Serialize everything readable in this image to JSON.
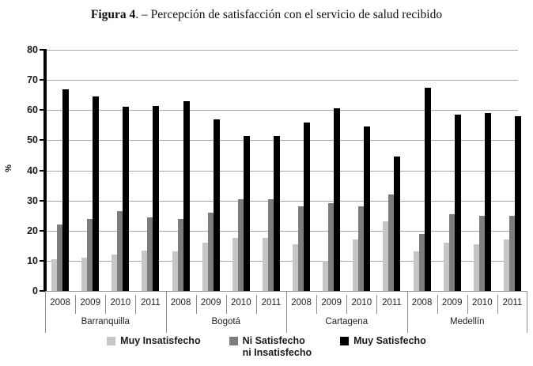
{
  "title": {
    "bold": "Figura 4",
    "rest": ". – Percepción de satisfacción  con el servicio de salud recibido"
  },
  "colors": {
    "muy_insatisfecho": "#c6c6c6",
    "ni_satisfecho": "#7d7d7d",
    "muy_satisfecho": "#000000",
    "gridline": "#a6a6a6",
    "axis": "#000000",
    "table_line": "#8c8c8c"
  },
  "chart_data": {
    "type": "bar",
    "title": "Percepción de satisfacción con el servicio de salud recibido",
    "xlabel": "",
    "ylabel": "%",
    "ylim": [
      0,
      80
    ],
    "y_ticks": [
      0,
      10,
      20,
      30,
      40,
      50,
      60,
      70,
      80
    ],
    "grid": true,
    "legend_position": "bottom",
    "group_categories": [
      "Barranquilla",
      "Bogotá",
      "Cartagena",
      "Medellín"
    ],
    "years_per_group": [
      "2008",
      "2009",
      "2010",
      "2011"
    ],
    "categories_order_note": "values run Barranquilla 2008-2011, Bogotá 2008-2011, Cartagena 2008-2011, Medellín 2008-2011",
    "series": [
      {
        "name": "Muy Insatisfecho",
        "legend_lines": [
          "Muy Insatisfecho"
        ],
        "color": "#c6c6c6",
        "values": [
          10.5,
          11,
          12,
          13.5,
          13,
          16,
          17.5,
          17.5,
          15.5,
          10,
          17,
          23,
          13,
          16,
          15.5,
          17
        ]
      },
      {
        "name": "Ni Satisfecho ni Insatisfecho",
        "legend_lines": [
          "Ni Satisfecho",
          "ni Insatisfecho"
        ],
        "color": "#7d7d7d",
        "values": [
          22,
          24,
          26.5,
          24.5,
          24,
          26,
          30.5,
          30.5,
          28,
          29,
          28,
          32,
          19,
          25.5,
          25,
          25
        ]
      },
      {
        "name": "Muy Satisfecho",
        "legend_lines": [
          "Muy Satisfecho"
        ],
        "color": "#000000",
        "values": [
          67,
          64.5,
          61,
          61.5,
          63,
          57,
          51.5,
          51.5,
          56,
          60.5,
          54.5,
          44.5,
          67.5,
          58.5,
          59,
          58
        ]
      }
    ]
  }
}
